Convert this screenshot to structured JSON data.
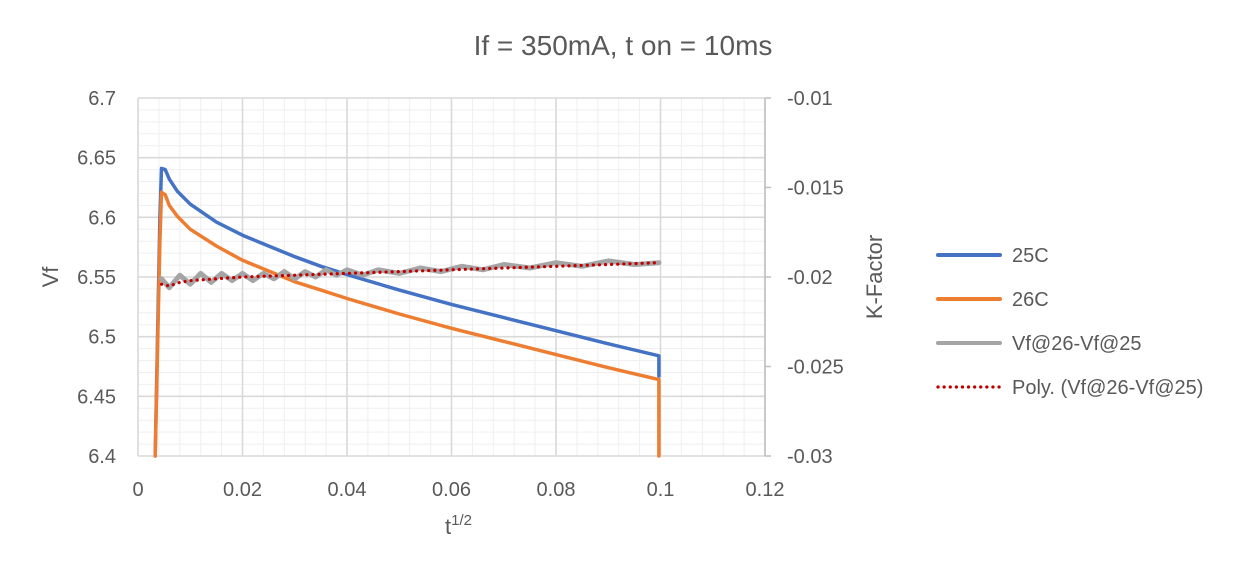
{
  "chart_data": {
    "type": "line",
    "title": "If = 350mA, t on = 10ms",
    "xlabel": "t",
    "xlabel_superscript": "1/2",
    "ylabel": "Vf",
    "y2label": "K-Factor",
    "xlim": [
      0,
      0.12
    ],
    "ylim": [
      6.4,
      6.7
    ],
    "y2lim": [
      -0.03,
      -0.01
    ],
    "x_ticks": [
      "0",
      "0.02",
      "0.04",
      "0.06",
      "0.08",
      "0.1",
      "0.12"
    ],
    "y_ticks": [
      "6.4",
      "6.45",
      "6.5",
      "6.55",
      "6.6",
      "6.65",
      "6.7"
    ],
    "y2_ticks": [
      "-0.03",
      "-0.025",
      "-0.02",
      "-0.015",
      "-0.01"
    ],
    "grid": true,
    "legend_position": "right",
    "series": [
      {
        "name": "25C",
        "axis": "left",
        "color": "#4472C4",
        "style": "solid",
        "points": [
          [
            0.0033,
            6.4
          ],
          [
            0.0042,
            6.6
          ],
          [
            0.0045,
            6.641
          ],
          [
            0.0052,
            6.64
          ],
          [
            0.006,
            6.632
          ],
          [
            0.0075,
            6.622
          ],
          [
            0.01,
            6.611
          ],
          [
            0.015,
            6.596
          ],
          [
            0.02,
            6.585
          ],
          [
            0.025,
            6.576
          ],
          [
            0.03,
            6.567
          ],
          [
            0.035,
            6.559
          ],
          [
            0.04,
            6.552
          ],
          [
            0.05,
            6.539
          ],
          [
            0.06,
            6.527
          ],
          [
            0.07,
            6.516
          ],
          [
            0.08,
            6.505
          ],
          [
            0.09,
            6.494
          ],
          [
            0.0997,
            6.484
          ],
          [
            0.0997,
            6.467
          ]
        ]
      },
      {
        "name": "26C",
        "axis": "left",
        "color": "#ED7D31",
        "style": "solid",
        "points": [
          [
            0.0033,
            6.4
          ],
          [
            0.0042,
            6.58
          ],
          [
            0.0045,
            6.621
          ],
          [
            0.0052,
            6.619
          ],
          [
            0.006,
            6.61
          ],
          [
            0.0075,
            6.601
          ],
          [
            0.01,
            6.59
          ],
          [
            0.015,
            6.576
          ],
          [
            0.02,
            6.564
          ],
          [
            0.025,
            6.555
          ],
          [
            0.03,
            6.546
          ],
          [
            0.035,
            6.539
          ],
          [
            0.04,
            6.532
          ],
          [
            0.05,
            6.519
          ],
          [
            0.06,
            6.507
          ],
          [
            0.07,
            6.496
          ],
          [
            0.08,
            6.485
          ],
          [
            0.09,
            6.474
          ],
          [
            0.0997,
            6.464
          ],
          [
            0.0997,
            6.4
          ]
        ]
      },
      {
        "name": "Vf@26-Vf@25",
        "axis": "right",
        "color": "#A5A5A5",
        "style": "solid",
        "points": [
          [
            0.0045,
            -0.0201
          ],
          [
            0.006,
            -0.0206
          ],
          [
            0.008,
            -0.0199
          ],
          [
            0.01,
            -0.0204
          ],
          [
            0.012,
            -0.0198
          ],
          [
            0.014,
            -0.0203
          ],
          [
            0.016,
            -0.0198
          ],
          [
            0.018,
            -0.0202
          ],
          [
            0.02,
            -0.0198
          ],
          [
            0.022,
            -0.0202
          ],
          [
            0.024,
            -0.0198
          ],
          [
            0.026,
            -0.0201
          ],
          [
            0.028,
            -0.0197
          ],
          [
            0.03,
            -0.0201
          ],
          [
            0.032,
            -0.0197
          ],
          [
            0.034,
            -0.02
          ],
          [
            0.036,
            -0.0196
          ],
          [
            0.038,
            -0.0199
          ],
          [
            0.04,
            -0.0196
          ],
          [
            0.043,
            -0.0199
          ],
          [
            0.046,
            -0.0196
          ],
          [
            0.05,
            -0.0198
          ],
          [
            0.054,
            -0.0195
          ],
          [
            0.058,
            -0.0197
          ],
          [
            0.062,
            -0.0194
          ],
          [
            0.066,
            -0.0196
          ],
          [
            0.07,
            -0.0193
          ],
          [
            0.075,
            -0.0195
          ],
          [
            0.08,
            -0.0192
          ],
          [
            0.085,
            -0.0194
          ],
          [
            0.09,
            -0.0191
          ],
          [
            0.095,
            -0.0193
          ],
          [
            0.0997,
            -0.0192
          ]
        ]
      },
      {
        "name": "Poly. (Vf@26-Vf@25)",
        "axis": "right",
        "color": "#C00000",
        "style": "dotted",
        "points": [
          [
            0.0045,
            -0.0204
          ],
          [
            0.006,
            -0.0205
          ],
          [
            0.008,
            -0.0203
          ],
          [
            0.01,
            -0.0202
          ],
          [
            0.015,
            -0.0201
          ],
          [
            0.02,
            -0.02
          ],
          [
            0.03,
            -0.0199
          ],
          [
            0.04,
            -0.0198
          ],
          [
            0.05,
            -0.0197
          ],
          [
            0.06,
            -0.0196
          ],
          [
            0.07,
            -0.0195
          ],
          [
            0.08,
            -0.0194
          ],
          [
            0.09,
            -0.0193
          ],
          [
            0.0997,
            -0.0192
          ]
        ]
      }
    ]
  }
}
